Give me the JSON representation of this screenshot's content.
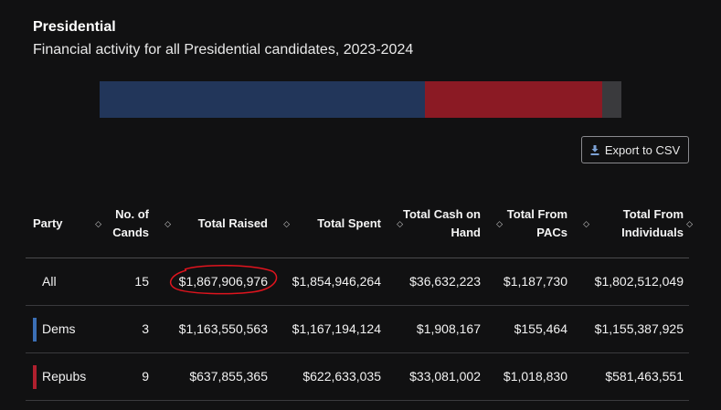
{
  "page": {
    "title": "Presidential",
    "subtitle": "Financial activity for all Presidential candidates, 2023-2024"
  },
  "party_bar": {
    "segments": [
      {
        "party": "Dems",
        "share": 0.623,
        "color": "#22365a"
      },
      {
        "party": "Repubs",
        "share": 0.341,
        "color": "#8b1a24"
      },
      {
        "party": "Other",
        "share": 0.036,
        "color": "#3a3a3d"
      }
    ]
  },
  "export": {
    "label": "Export to CSV"
  },
  "table": {
    "headers": {
      "party": "Party",
      "cands": "No. of Cands",
      "raised": "Total Raised",
      "spent": "Total Spent",
      "cash": "Total Cash on Hand",
      "pacs": "Total From PACs",
      "indiv": "Total From Individuals"
    },
    "rows": [
      {
        "party": "All",
        "cands": "15",
        "raised": "$1,867,906,976",
        "spent": "$1,854,946,264",
        "cash": "$36,632,223",
        "pacs": "$1,187,730",
        "indiv": "$1,802,512,049",
        "color": ""
      },
      {
        "party": "Dems",
        "cands": "3",
        "raised": "$1,163,550,563",
        "spent": "$1,167,194,124",
        "cash": "$1,908,167",
        "pacs": "$155,464",
        "indiv": "$1,155,387,925",
        "color": "#3b6fb6"
      },
      {
        "party": "Repubs",
        "cands": "9",
        "raised": "$637,855,365",
        "spent": "$622,633,035",
        "cash": "$33,081,002",
        "pacs": "$1,018,830",
        "indiv": "$581,463,551",
        "color": "#b0202e"
      }
    ]
  },
  "icons": {
    "sort": "sort-arrows-icon",
    "download": "download-icon"
  },
  "annotation": {
    "color": "#e0141e"
  }
}
